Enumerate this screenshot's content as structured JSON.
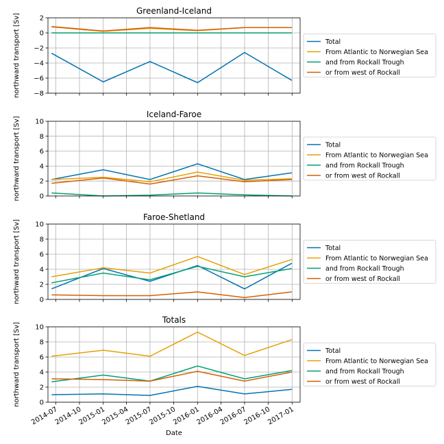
{
  "colors": {
    "Total": "#0072b2",
    "From Atlantic to Norwegian Sea": "#e69f00",
    "and from Rockall Trough": "#009e73",
    "or from west of Rockall": "#d55e00"
  },
  "xlabel": "Date",
  "x_ticks": [
    "2014-07",
    "2014-10",
    "2015-01",
    "2015-04",
    "2015-07",
    "2015-10",
    "2016-01",
    "2016-04",
    "2016-07",
    "2016-10",
    "2017-01"
  ],
  "chart_data": [
    {
      "type": "line",
      "title": "Greenland-Iceland",
      "ylabel": "northward transport [Sv]",
      "ylim": [
        -8,
        2
      ],
      "yticks": [
        -8,
        -6,
        -4,
        -2,
        0,
        2
      ],
      "grid": true,
      "legend": "outside-right",
      "x": [
        "2014-06-15",
        "2015-01-01",
        "2015-07-01",
        "2016-01-01",
        "2016-07-01",
        "2016-12-31"
      ],
      "series": [
        {
          "name": "Total",
          "values": [
            -2.7,
            -6.5,
            -3.8,
            -6.6,
            -2.6,
            -6.3
          ]
        },
        {
          "name": "From Atlantic to Norwegian Sea",
          "values": [
            0.8,
            0.2,
            0.6,
            0.3,
            0.7,
            0.7
          ]
        },
        {
          "name": "and from Rockall Trough",
          "values": [
            0.0,
            0.0,
            0.0,
            0.0,
            0.0,
            0.0
          ]
        },
        {
          "name": "or from west of Rockall",
          "values": [
            0.85,
            0.25,
            0.7,
            0.35,
            0.7,
            0.7
          ]
        }
      ]
    },
    {
      "type": "line",
      "title": "Iceland-Faroe",
      "ylabel": "northward transport [Sv]",
      "ylim": [
        0,
        10
      ],
      "yticks": [
        0,
        2,
        4,
        6,
        8,
        10
      ],
      "grid": true,
      "legend": "outside-right",
      "x": [
        "2014-06-15",
        "2015-01-01",
        "2015-07-01",
        "2016-01-01",
        "2016-07-01",
        "2016-12-31"
      ],
      "series": [
        {
          "name": "Total",
          "values": [
            2.2,
            3.5,
            2.2,
            4.3,
            2.2,
            3.1
          ]
        },
        {
          "name": "From Atlantic to Norwegian Sea",
          "values": [
            2.2,
            2.5,
            1.9,
            3.2,
            2.1,
            2.3
          ]
        },
        {
          "name": "and from Rockall Trough",
          "values": [
            0.4,
            0.0,
            0.1,
            0.4,
            0.15,
            0.0
          ]
        },
        {
          "name": "or from west of Rockall",
          "values": [
            1.7,
            2.4,
            1.6,
            2.7,
            1.9,
            2.2
          ]
        }
      ]
    },
    {
      "type": "line",
      "title": "Faroe-Shetland",
      "ylabel": "northward transport [Sv]",
      "ylim": [
        0,
        10
      ],
      "yticks": [
        0,
        2,
        4,
        6,
        8,
        10
      ],
      "grid": true,
      "legend": "outside-right",
      "x": [
        "2014-06-15",
        "2015-01-01",
        "2015-07-01",
        "2016-01-01",
        "2016-07-01",
        "2016-12-31"
      ],
      "series": [
        {
          "name": "Total",
          "values": [
            1.4,
            4.1,
            2.4,
            4.5,
            1.4,
            4.8
          ]
        },
        {
          "name": "From Atlantic to Norwegian Sea",
          "values": [
            3.0,
            4.2,
            3.5,
            5.7,
            3.3,
            5.3
          ]
        },
        {
          "name": "and from Rockall Trough",
          "values": [
            2.2,
            3.5,
            2.6,
            4.4,
            3.0,
            4.1
          ]
        },
        {
          "name": "or from west of Rockall",
          "values": [
            0.6,
            0.5,
            0.5,
            1.0,
            0.25,
            1.0
          ]
        }
      ]
    },
    {
      "type": "line",
      "title": "Totals",
      "ylabel": "northward transport [Sv]",
      "ylim": [
        0,
        10
      ],
      "yticks": [
        0,
        2,
        4,
        6,
        8,
        10
      ],
      "grid": true,
      "legend": "outside-right",
      "x": [
        "2014-06-15",
        "2015-01-01",
        "2015-07-01",
        "2016-01-01",
        "2016-07-01",
        "2016-12-31"
      ],
      "series": [
        {
          "name": "Total",
          "values": [
            1.0,
            1.1,
            0.9,
            2.1,
            1.1,
            1.7
          ]
        },
        {
          "name": "From Atlantic to Norwegian Sea",
          "values": [
            6.1,
            6.9,
            6.1,
            9.3,
            6.2,
            8.3
          ]
        },
        {
          "name": "and from Rockall Trough",
          "values": [
            2.7,
            3.6,
            2.8,
            4.8,
            3.1,
            4.2
          ]
        },
        {
          "name": "or from west of Rockall",
          "values": [
            3.1,
            3.0,
            2.8,
            4.1,
            2.8,
            4.0
          ]
        }
      ]
    }
  ]
}
